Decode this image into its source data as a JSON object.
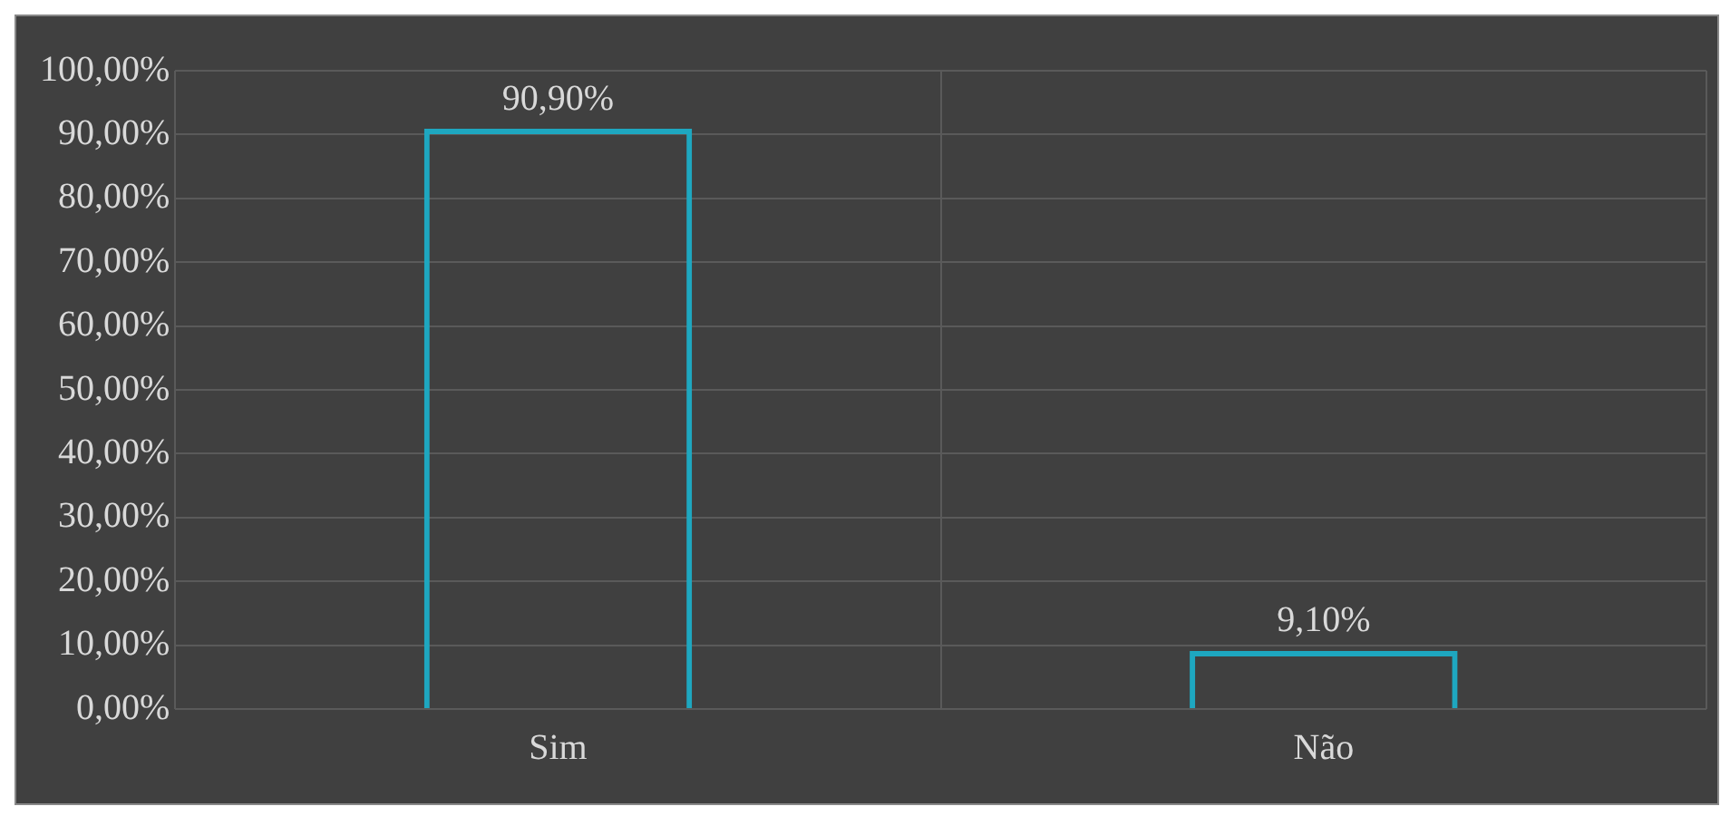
{
  "chart_data": {
    "type": "bar",
    "categories": [
      "Sim",
      "Não"
    ],
    "values": [
      90.9,
      9.1
    ],
    "color": "#1ea7c0",
    "value_labels": [
      "90,90%",
      "9,10%"
    ],
    "ylim": [
      0,
      100
    ],
    "yticks": [
      {
        "value": 0,
        "label": "0,00%"
      },
      {
        "value": 10,
        "label": "10,00%"
      },
      {
        "value": 20,
        "label": "20,00%"
      },
      {
        "value": 30,
        "label": "30,00%"
      },
      {
        "value": 40,
        "label": "40,00%"
      },
      {
        "value": 50,
        "label": "50,00%"
      },
      {
        "value": 60,
        "label": "60,00%"
      },
      {
        "value": 70,
        "label": "70,00%"
      },
      {
        "value": 80,
        "label": "80,00%"
      },
      {
        "value": 90,
        "label": "90,00%"
      },
      {
        "value": 100,
        "label": "100,00%"
      }
    ],
    "grid": true,
    "legend": false
  }
}
